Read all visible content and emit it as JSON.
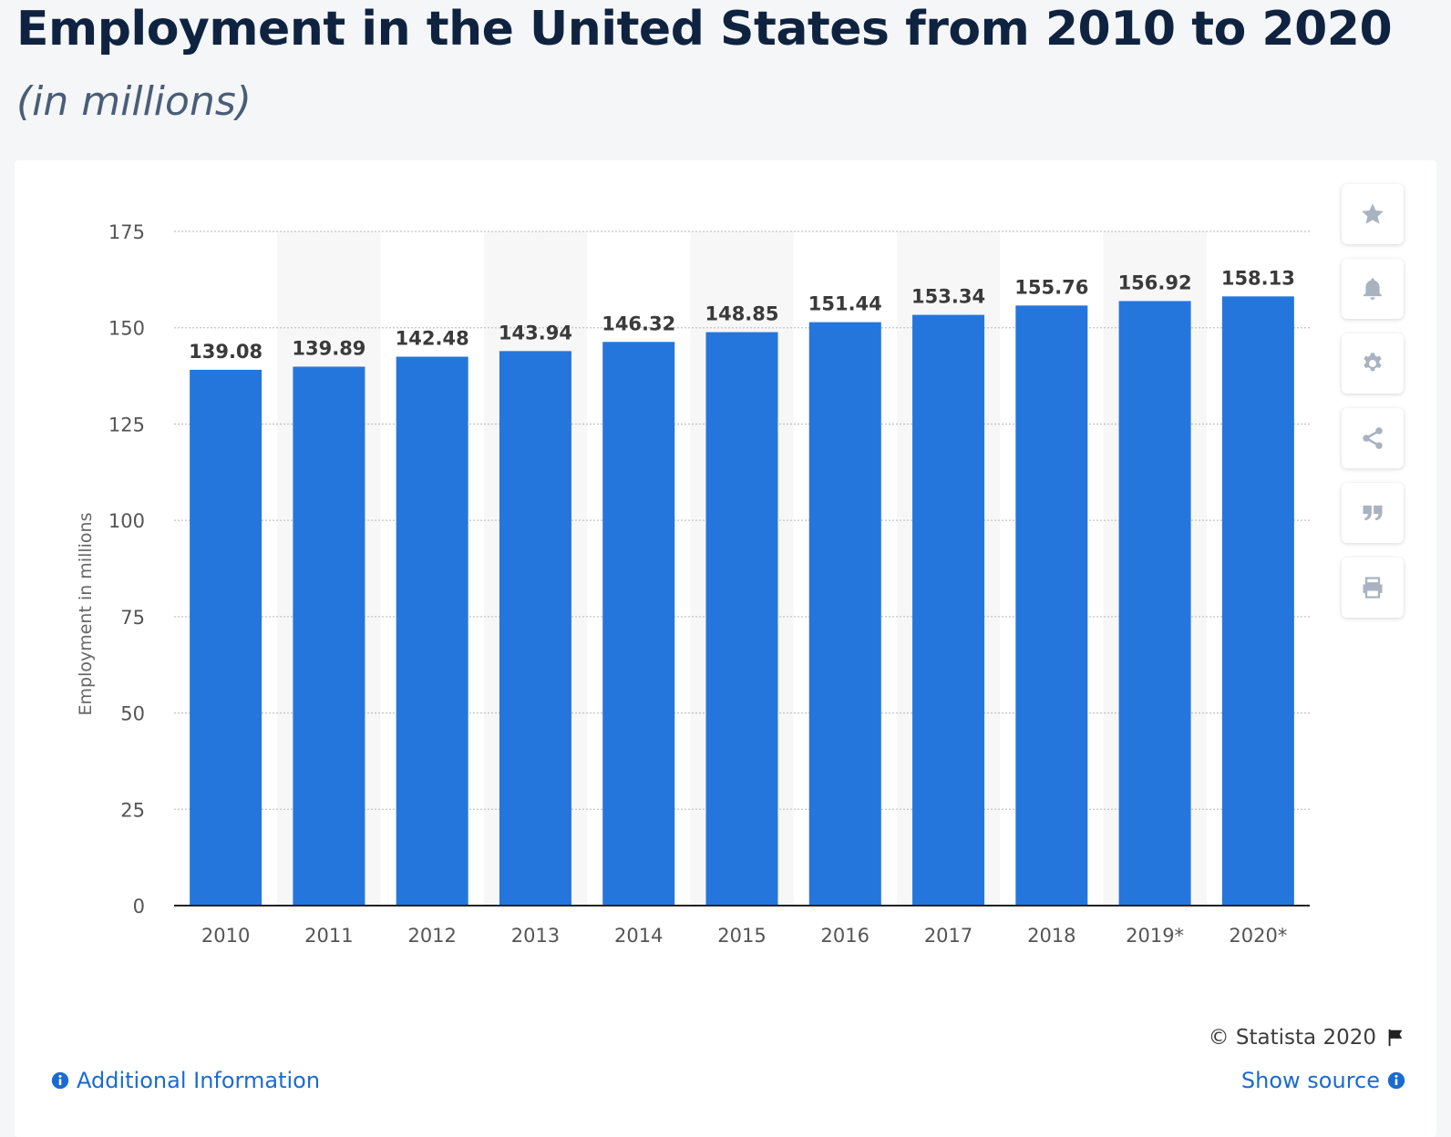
{
  "header": {
    "title": "Employment in the United States from 2010 to 2020",
    "subtitle": "(in millions)"
  },
  "chart_data": {
    "type": "bar",
    "categories": [
      "2010",
      "2011",
      "2012",
      "2013",
      "2014",
      "2015",
      "2016",
      "2017",
      "2018",
      "2019*",
      "2020*"
    ],
    "values": [
      139.08,
      139.89,
      142.48,
      143.94,
      146.32,
      148.85,
      151.44,
      153.34,
      155.76,
      156.92,
      158.13
    ],
    "value_labels": [
      "139.08",
      "139.89",
      "142.48",
      "143.94",
      "146.32",
      "148.85",
      "151.44",
      "153.34",
      "155.76",
      "156.92",
      "158.13"
    ],
    "ylabel": "Employment in millions",
    "xlabel": "",
    "ylim": [
      0,
      175
    ],
    "yticks": [
      0,
      25,
      50,
      75,
      100,
      125,
      150,
      175
    ],
    "grid": true,
    "bar_color": "#2576dc",
    "alternate_band_color": "#f7f7f7"
  },
  "toolbar": {
    "icons": [
      "star-icon",
      "bell-icon",
      "gear-icon",
      "share-icon",
      "quote-icon",
      "print-icon"
    ]
  },
  "footer": {
    "copyright": "© Statista 2020",
    "additional_info": "Additional Information",
    "show_source": "Show source"
  },
  "colors": {
    "title": "#0f2341",
    "link": "#1a6bd1",
    "icon": "#a9b3c0"
  }
}
